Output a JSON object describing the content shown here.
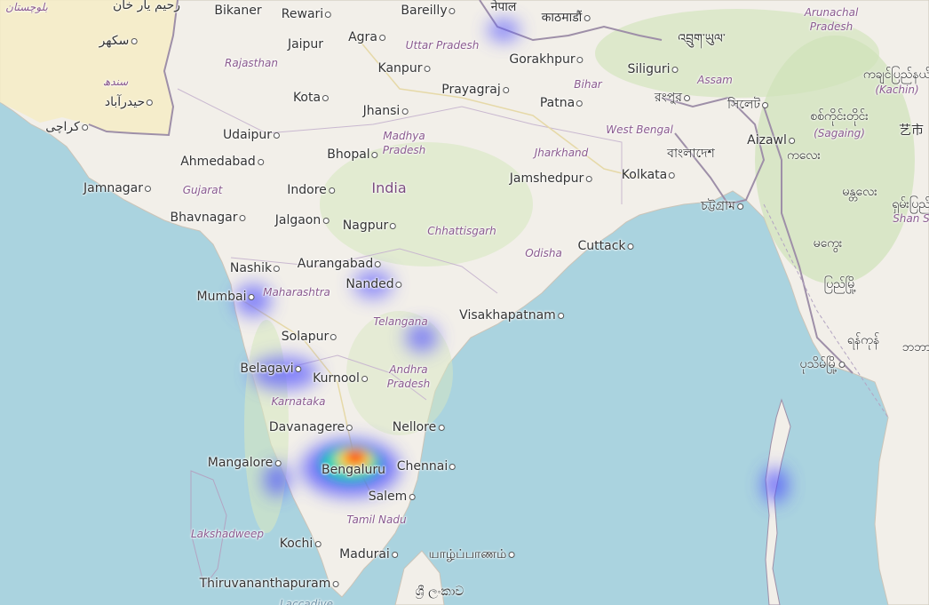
{
  "map": {
    "colors": {
      "water": "#aad3df",
      "land": "#f2efe9",
      "forest": "#cfe3b8",
      "border": "#9e8fa8",
      "pakistan": "#f6ecc6"
    },
    "labels": {
      "pk1": "بلوچستان",
      "pk2": "رحیم یار خان",
      "pk3": "سکھر",
      "pk4": "سندھ",
      "pk5": "حیدرآباد",
      "pk6": "کراچی",
      "bikaner": "Bikaner",
      "rewari": "Rewari",
      "bareilly": "Bareilly",
      "nepal": "नेपाल",
      "kathmandu": "काठमाडौं",
      "bhutan": "འབྲུག་ཡུལ་",
      "arunachal": "Arunachal Pradesh",
      "jaipur": "Jaipur",
      "agra": "Agra",
      "up": "Uttar Pradesh",
      "gorakhpur": "Gorakhpur",
      "siliguri": "Siliguri",
      "kachin_my": "ကချင်ပြည်နယ်",
      "kachin": "(Kachin)",
      "rajasthan": "Rajasthan",
      "kanpur": "Kanpur",
      "bihar": "Bihar",
      "assam": "Assam",
      "kota": "Kota",
      "prayagraj": "Prayagraj",
      "rangpur": "রংপুর",
      "sylhet": "সিলেট",
      "patna": "Patna",
      "jhansi": "Jhansi",
      "sagaing_my": "စစ်ကိုင်းတိုင်း",
      "sagaing": "(Sagaing)",
      "cn": "艺市",
      "udaipur": "Udaipur",
      "mp1": "Madhya",
      "mp2": "Pradesh",
      "westbengal": "West Bengal",
      "aizawl": "Aizawl",
      "kalay": "ကလေး",
      "bhopal": "Bhopal",
      "jharkhand": "Jharkhand",
      "bangladesh": "বাংলাদেশ",
      "ahmedabad": "Ahmedabad",
      "india": "India",
      "jamshedpur": "Jamshedpur",
      "kolkata": "Kolkata",
      "jamnagar": "Jamnagar",
      "gujarat": "Gujarat",
      "indore": "Indore",
      "mandalay": "မန္တလေး",
      "shan_my": "ရှမ်းပြည်",
      "shan": "Shan S",
      "bhavnagar": "Bhavnagar",
      "jalgaon": "Jalgaon",
      "nagpur": "Nagpur",
      "chattogram": "চট্টগ্রাম",
      "chhattisgarh": "Chhattisgarh",
      "magway": "မကွေး",
      "cuttack": "Cuttack",
      "odisha": "Odisha",
      "nashik": "Nashik",
      "aurangabad": "Aurangabad",
      "maharashtra": "Maharashtra",
      "nanded": "Nanded",
      "bago": "ပြည်မြို့",
      "mumbai": "Mumbai",
      "visakhapatnam": "Visakhapatnam",
      "telangana": "Telangana",
      "solapur": "Solapur",
      "yangon": "ရန်ကုန်",
      "thai": "ဘဘာ",
      "belagavi": "Belagavi",
      "kurnool": "Kurnool",
      "ap1": "Andhra",
      "ap2": "Pradesh",
      "pathein": "ပုသိမ်မြို့",
      "karnataka": "Karnataka",
      "davanagere": "Davanagere",
      "nellore": "Nellore",
      "mangalore": "Mangalore",
      "bengaluru": "Bengaluru",
      "chennai": "Chennai",
      "salem": "Salem",
      "tamilnadu": "Tamil Nadu",
      "lakshadweep": "Lakshadweep",
      "kochi": "Kochi",
      "madurai": "Madurai",
      "jaffna": "யாழ்ப்பாணம்",
      "thiruvananthapuram": "Thiruvananthapuram",
      "srilanka": "ශ්‍රී ලංකාව",
      "laccadive": "Laccadive"
    }
  }
}
